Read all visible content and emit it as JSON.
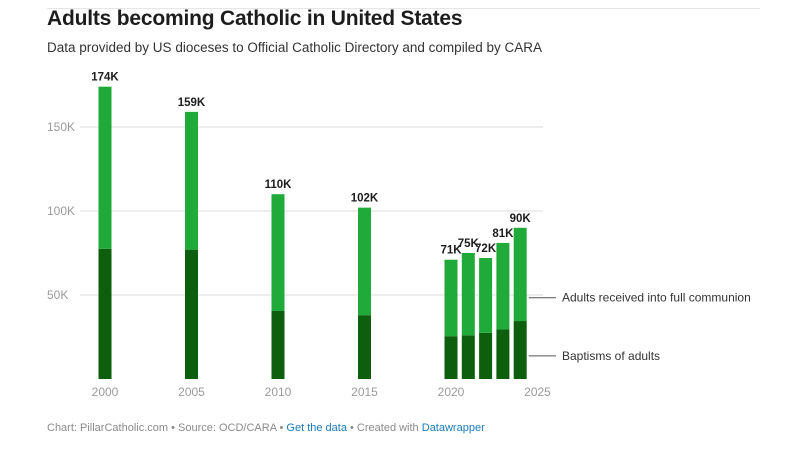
{
  "title": "Adults becoming Catholic in United States",
  "subtitle": "Data provided by US dioceses to Official Catholic Directory and compiled by CARA",
  "footer": {
    "chart_prefix": "Chart: PillarCatholic.com",
    "separator": " • ",
    "source": "Source: OCD/CARA",
    "get_data": "Get the data",
    "created_with": "Created with",
    "tool": "Datawrapper"
  },
  "colors": {
    "baptisms": "#0d5e0d",
    "full_communion": "#1faa3a",
    "grid": "#dddddd",
    "axis_text": "#9a9a9a"
  },
  "chart_data": {
    "type": "bar",
    "stacked": true,
    "title": "Adults becoming Catholic in United States",
    "subtitle": "Data provided by US dioceses to Official Catholic Directory and compiled by CARA",
    "xlim": [
      1998,
      2025
    ],
    "ylim": [
      0,
      175000
    ],
    "x_ticks": [
      2000,
      2005,
      2010,
      2015,
      2020,
      2025
    ],
    "y_ticks": [
      50000,
      100000,
      150000
    ],
    "y_tick_labels": [
      "50K",
      "100K",
      "150K"
    ],
    "grid": true,
    "x": [
      2000,
      2005,
      2010,
      2015,
      2020,
      2021,
      2022,
      2023,
      2024
    ],
    "total_labels": [
      "174K",
      "159K",
      "110K",
      "102K",
      "71K",
      "75K",
      "72K",
      "81K",
      "90K"
    ],
    "series": [
      {
        "name": "Baptisms of adults",
        "values": [
          77500,
          77000,
          40500,
          38000,
          25500,
          26000,
          27500,
          29500,
          34500
        ]
      },
      {
        "name": "Adults received into full communion",
        "values": [
          96500,
          82000,
          69500,
          64000,
          45500,
          49000,
          44500,
          51500,
          55500
        ]
      }
    ],
    "annotations": [
      {
        "text": "Adults received into full communion",
        "series": "Adults received into full communion"
      },
      {
        "text": "Baptisms of adults",
        "series": "Baptisms of adults"
      }
    ]
  }
}
